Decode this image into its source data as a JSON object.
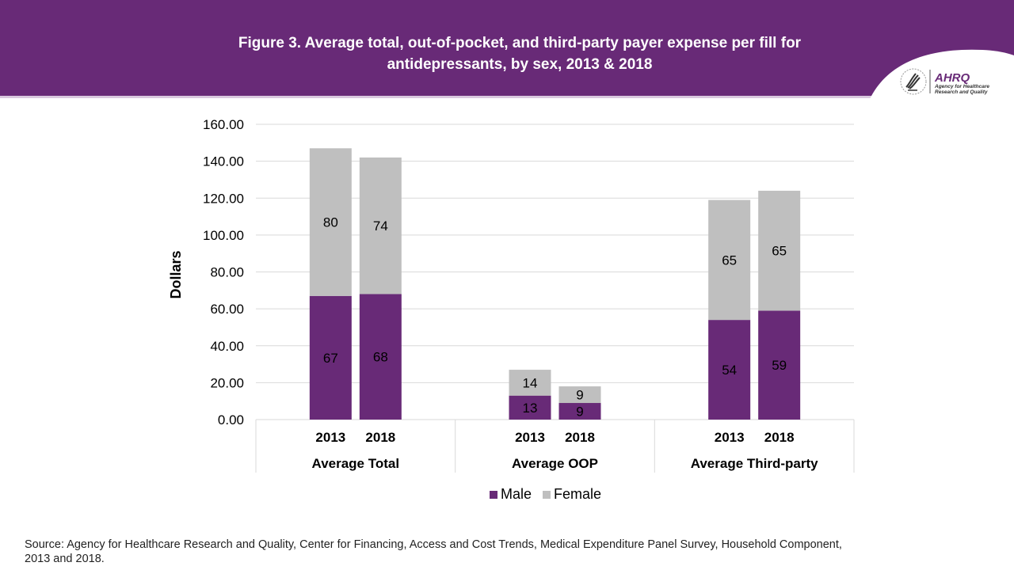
{
  "header": {
    "title_line1": "Figure 3. Average total, out-of-pocket, and third-party payer expense per fill for",
    "title_line2": "antidepressants, by sex, 2013 & 2018",
    "banner_color": "#682a77",
    "logo": {
      "icon": "hhs-eagle-icon",
      "brand": "AHRQ",
      "tagline_line1": "Agency for Healthcare",
      "tagline_line2": "Research and Quality"
    }
  },
  "chart_data": {
    "type": "bar",
    "stacked": true,
    "title": "Figure 3. Average total, out-of-pocket, and third-party payer expense per fill for antidepressants, by sex, 2013 & 2018",
    "xlabel": "",
    "ylabel": "Dollars",
    "ylim": [
      0,
      160
    ],
    "yticks": [
      "0.00",
      "20.00",
      "40.00",
      "60.00",
      "80.00",
      "100.00",
      "120.00",
      "140.00",
      "160.00"
    ],
    "grid": true,
    "groups": [
      {
        "label": "Average Total",
        "categories": [
          "2013",
          "2018"
        ]
      },
      {
        "label": "Average OOP",
        "categories": [
          "2013",
          "2018"
        ]
      },
      {
        "label": "Average Third-party",
        "categories": [
          "2013",
          "2018"
        ]
      }
    ],
    "series": [
      {
        "name": "Male",
        "color": "#682a77",
        "values": [
          67,
          68,
          13,
          9,
          54,
          59
        ],
        "labels": [
          "67",
          "68",
          "13",
          "9",
          "54",
          "59"
        ]
      },
      {
        "name": "Female",
        "color": "#bfbfbf",
        "values": [
          80,
          74,
          14,
          9,
          65,
          65
        ],
        "labels": [
          "80",
          "74",
          "14",
          "9",
          "65",
          "65"
        ]
      }
    ],
    "legend_position": "bottom"
  },
  "legend": {
    "items": [
      {
        "label": "Male",
        "color": "#682a77"
      },
      {
        "label": "Female",
        "color": "#bfbfbf"
      }
    ]
  },
  "footer": {
    "source": "Source: Agency for Healthcare Research and Quality, Center for Financing, Access and Cost Trends, Medical Expenditure Panel Survey, Household Component, 2013 and 2018."
  }
}
